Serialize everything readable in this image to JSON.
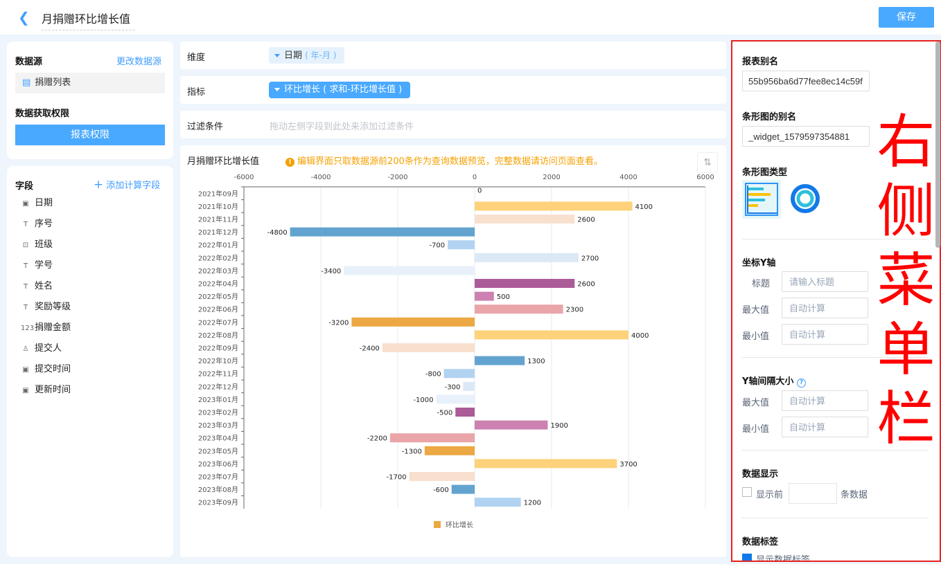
{
  "header": {
    "back_icon": "chevron-left-icon",
    "title": "月捐赠环比增长值",
    "save_label": "保存"
  },
  "datasource": {
    "label": "数据源",
    "change_link": "更改数据源",
    "item": "捐赠列表",
    "item_icon": "document-icon",
    "perm_label": "数据获取权限",
    "perm_button": "报表权限"
  },
  "fields": {
    "label": "字段",
    "add_link": "添加计算字段",
    "items": [
      {
        "name": "日期",
        "icon": "calendar-icon",
        "glyph": "▣"
      },
      {
        "name": "序号",
        "icon": "text-icon",
        "glyph": "T"
      },
      {
        "name": "班级",
        "icon": "dropdown-icon",
        "glyph": "⊡"
      },
      {
        "name": "学号",
        "icon": "text-icon",
        "glyph": "T"
      },
      {
        "name": "姓名",
        "icon": "text-icon",
        "glyph": "T"
      },
      {
        "name": "奖励等级",
        "icon": "text-icon",
        "glyph": "T"
      },
      {
        "name": "捐赠金额",
        "icon": "number-icon",
        "glyph": "123"
      },
      {
        "name": "提交人",
        "icon": "user-icon",
        "glyph": "♙"
      },
      {
        "name": "提交时间",
        "icon": "calendar-icon",
        "glyph": "▣"
      },
      {
        "name": "更新时间",
        "icon": "calendar-icon",
        "glyph": "▣"
      }
    ]
  },
  "config": {
    "dimension": {
      "label": "维度",
      "value": "日期",
      "suffix": "( 年-月 )"
    },
    "metric": {
      "label": "指标",
      "value": "环比增长 ( 求和-环比增长值 )"
    },
    "filter": {
      "label": "过滤条件",
      "placeholder": "拖动左侧字段到此处来添加过滤条件"
    }
  },
  "chart_panel": {
    "title": "月捐赠环比增长值",
    "warning": "编辑界面只取数据源前200条作为查询数据预览，完整数据请访问页面查看。",
    "swap_icon": "swap-axis-icon"
  },
  "chart_data": {
    "type": "bar",
    "orientation": "horizontal",
    "categories": [
      "2021年09月",
      "2021年10月",
      "2021年11月",
      "2021年12月",
      "2022年01月",
      "2022年02月",
      "2022年03月",
      "2022年04月",
      "2022年05月",
      "2022年06月",
      "2022年07月",
      "2022年08月",
      "2022年09月",
      "2022年10月",
      "2022年11月",
      "2022年12月",
      "2023年01月",
      "2023年02月",
      "2023年03月",
      "2023年04月",
      "2023年05月",
      "2023年06月",
      "2023年07月",
      "2023年08月",
      "2023年09月"
    ],
    "series": [
      {
        "name": "环比增长",
        "values": [
          0,
          4100,
          2600,
          -4800,
          -700,
          2700,
          -3400,
          2600,
          500,
          2300,
          -3200,
          4000,
          -2400,
          1300,
          -800,
          -300,
          -1000,
          -500,
          1900,
          -2200,
          -1300,
          3700,
          -1700,
          -600,
          1200
        ]
      }
    ],
    "xlim": [
      -6000,
      6000
    ],
    "xticks": [
      -6000,
      -4000,
      -2000,
      0,
      2000,
      4000,
      6000
    ],
    "grid": true,
    "legend": "bottom",
    "data_labels": true,
    "palette": [
      "#eca843",
      "#fdd27a",
      "#f8e0cf",
      "#62a3cf",
      "#b1d3f1",
      "#dbe8f6",
      "#e8f1fa",
      "#ab5b97",
      "#cc81b1",
      "#e9a5a8"
    ],
    "legend_color": "#eca843"
  },
  "right_panel": {
    "report_alias": {
      "label": "报表别名",
      "value": "55b956ba6d77fee8ec14c59f"
    },
    "bar_alias": {
      "label": "条形图的别名",
      "value": "_widget_1579597354881"
    },
    "bar_type": {
      "label": "条形图类型",
      "options": [
        "bar-chart-icon",
        "ring-chart-icon"
      ]
    },
    "y_axis": {
      "label": "坐标Y轴",
      "title_label": "标题",
      "title_placeholder": "请输入标题",
      "max_label": "最大值",
      "max_placeholder": "自动计算",
      "min_label": "最小值",
      "min_placeholder": "自动计算"
    },
    "y_interval": {
      "label": "Y轴间隔大小",
      "help_icon": "help-icon",
      "max_label": "最大值",
      "max_placeholder": "自动计算",
      "min_label": "最小值",
      "min_placeholder": "自动计算"
    },
    "data_display": {
      "label": "数据显示",
      "check_label": "显示前",
      "checked": false,
      "suffix": "条数据"
    },
    "data_tags": {
      "label": "数据标签",
      "check_label": "显示数据标签",
      "checked": true
    }
  },
  "annotation": {
    "text": "右侧菜单栏",
    "color": "#ff0000"
  }
}
